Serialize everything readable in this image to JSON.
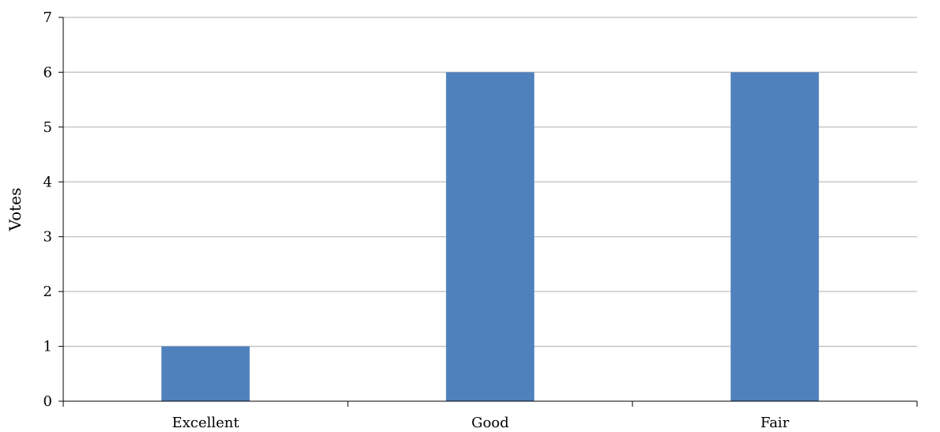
{
  "chart_data": {
    "type": "bar",
    "title": "",
    "xlabel": "",
    "ylabel": "Votes",
    "categories": [
      "Excellent",
      "Good",
      "Fair"
    ],
    "values": [
      1,
      6,
      6
    ],
    "ylim": [
      0,
      7
    ],
    "yticks": [
      0,
      1,
      2,
      3,
      4,
      5,
      6,
      7
    ],
    "grid": true,
    "legend": "none",
    "colors": {
      "bar": "#4f81bd",
      "grid": "#bfbfbf",
      "axis": "#000000"
    }
  }
}
